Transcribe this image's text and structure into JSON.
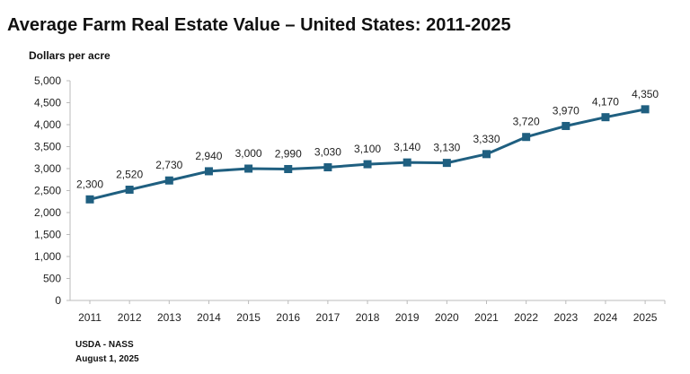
{
  "chart_data": {
    "type": "line",
    "title": "Average Farm Real Estate Value – United States: 2011-2025",
    "ylabel": "Dollars per acre",
    "xlabel": "",
    "categories": [
      "2011",
      "2012",
      "2013",
      "2014",
      "2015",
      "2016",
      "2017",
      "2018",
      "2019",
      "2020",
      "2021",
      "2022",
      "2023",
      "2024",
      "2025"
    ],
    "values": [
      2300,
      2520,
      2730,
      2940,
      3000,
      2990,
      3030,
      3100,
      3140,
      3130,
      3330,
      3720,
      3970,
      4170,
      4350
    ],
    "data_labels": [
      "2,300",
      "2,520",
      "2,730",
      "2,940",
      "3,000",
      "2,990",
      "3,030",
      "3,100",
      "3,140",
      "3,130",
      "3,330",
      "3,720",
      "3,970",
      "4,170",
      "4,350"
    ],
    "yticks": [
      "0",
      "500",
      "1,000",
      "1,500",
      "2,000",
      "2,500",
      "3,000",
      "3,500",
      "4,000",
      "4,500",
      "5,000"
    ],
    "ylim": [
      0,
      5000
    ],
    "grid": false,
    "marker": "square",
    "line_color": "#1f5f80"
  },
  "footer": {
    "source": "USDA - NASS",
    "date": "August 1, 2025"
  }
}
